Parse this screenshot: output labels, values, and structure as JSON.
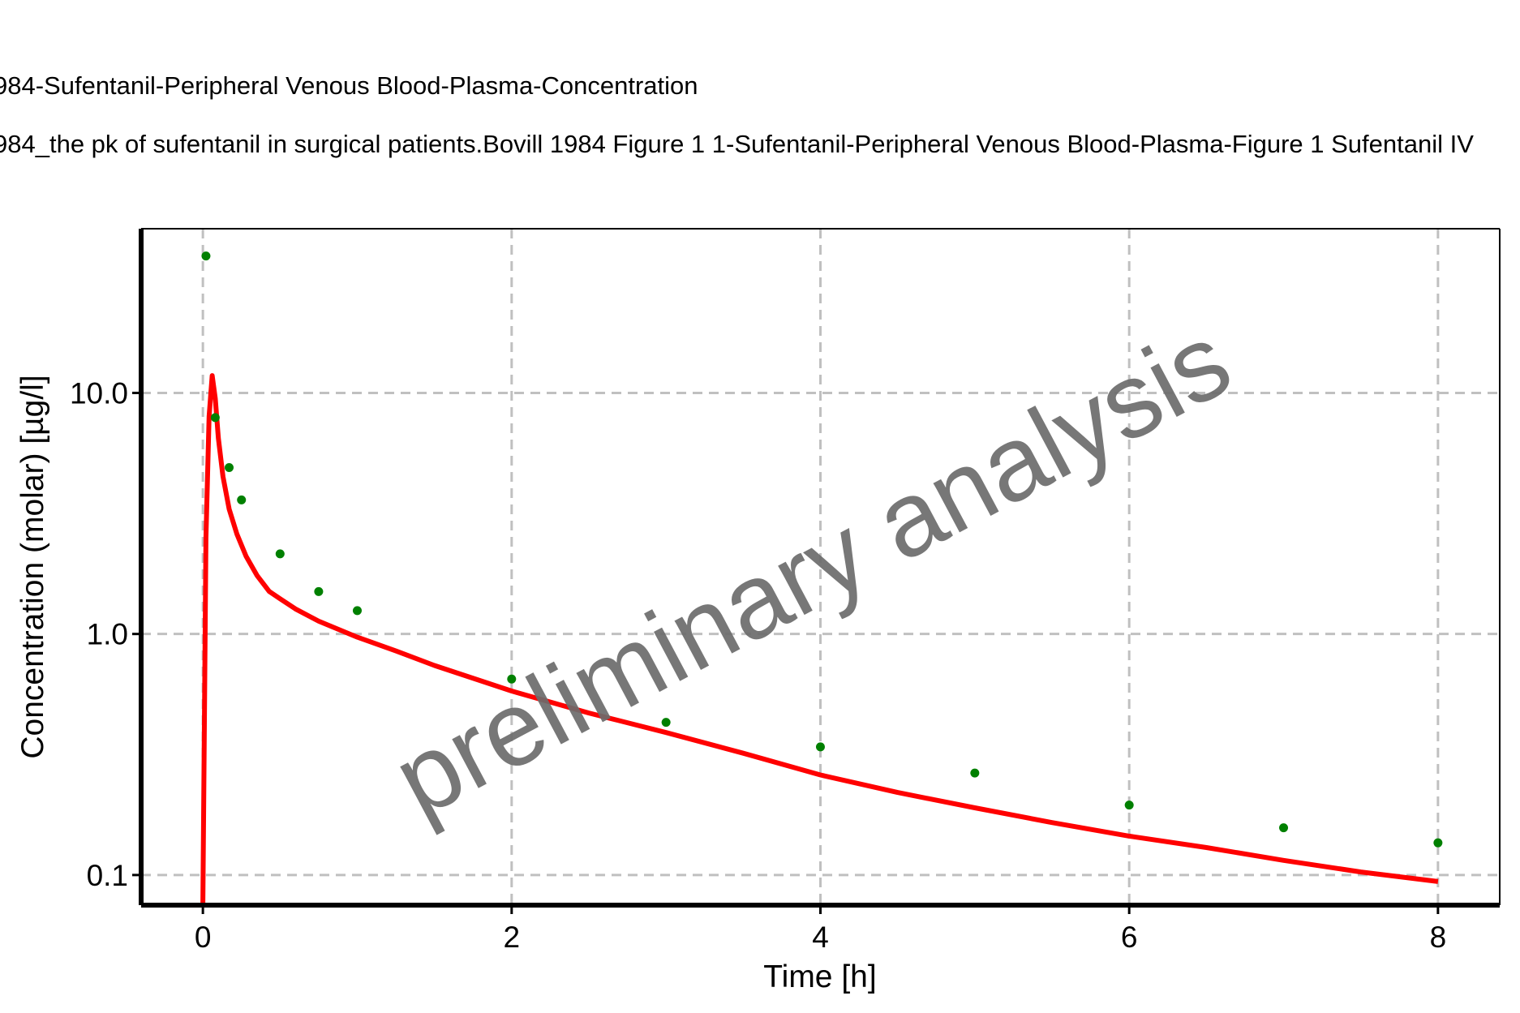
{
  "chart_data": {
    "type": "line",
    "title": "984-Sufentanil-Peripheral Venous Blood-Plasma-Concentration",
    "subtitle": "984_the pk of sufentanil in surgical patients.Bovill 1984 Figure 1 1-Sufentanil-Peripheral Venous Blood-Plasma-Figure 1 Sufentanil IV",
    "xlabel": "Time [h]",
    "ylabel": "Concentration (molar) [µg/l]",
    "x_scale": "linear",
    "y_scale": "log",
    "xlim": [
      -0.4,
      8.4
    ],
    "ylim": [
      0.075,
      48
    ],
    "x_ticks": [
      {
        "value": 0,
        "label": "0"
      },
      {
        "value": 2,
        "label": "2"
      },
      {
        "value": 4,
        "label": "4"
      },
      {
        "value": 6,
        "label": "6"
      },
      {
        "value": 8,
        "label": "8"
      }
    ],
    "y_ticks": [
      {
        "value": 0.1,
        "label": "0.1"
      },
      {
        "value": 1,
        "label": "1.0"
      },
      {
        "value": 10,
        "label": "10.0"
      }
    ],
    "grid": true,
    "legend": "none",
    "watermark": "preliminary analysis",
    "series": [
      {
        "kind": "line",
        "color": "#ff0000",
        "x": [
          0,
          0.02,
          0.04,
          0.06,
          0.08,
          0.1,
          0.13,
          0.17,
          0.22,
          0.28,
          0.35,
          0.43,
          0.5,
          0.6,
          0.75,
          1.0,
          1.25,
          1.5,
          2.0,
          2.5,
          3.0,
          3.5,
          4.0,
          4.5,
          5.0,
          5.5,
          6.0,
          6.5,
          7.0,
          7.5,
          8.0
        ],
        "y": [
          0.075,
          2.5,
          8.0,
          11.8,
          9.5,
          6.5,
          4.5,
          3.3,
          2.6,
          2.1,
          1.75,
          1.5,
          1.4,
          1.27,
          1.13,
          0.97,
          0.85,
          0.74,
          0.58,
          0.47,
          0.39,
          0.32,
          0.26,
          0.22,
          0.19,
          0.165,
          0.145,
          0.13,
          0.115,
          0.103,
          0.094
        ]
      },
      {
        "kind": "scatter",
        "color": "#008000",
        "x": [
          0.02,
          0.08,
          0.17,
          0.25,
          0.5,
          0.75,
          1.0,
          2.0,
          3.0,
          4.0,
          5.0,
          6.0,
          7.0,
          8.0
        ],
        "y": [
          37,
          7.9,
          4.9,
          3.6,
          2.15,
          1.5,
          1.25,
          0.65,
          0.43,
          0.34,
          0.265,
          0.195,
          0.157,
          0.136
        ]
      }
    ]
  }
}
